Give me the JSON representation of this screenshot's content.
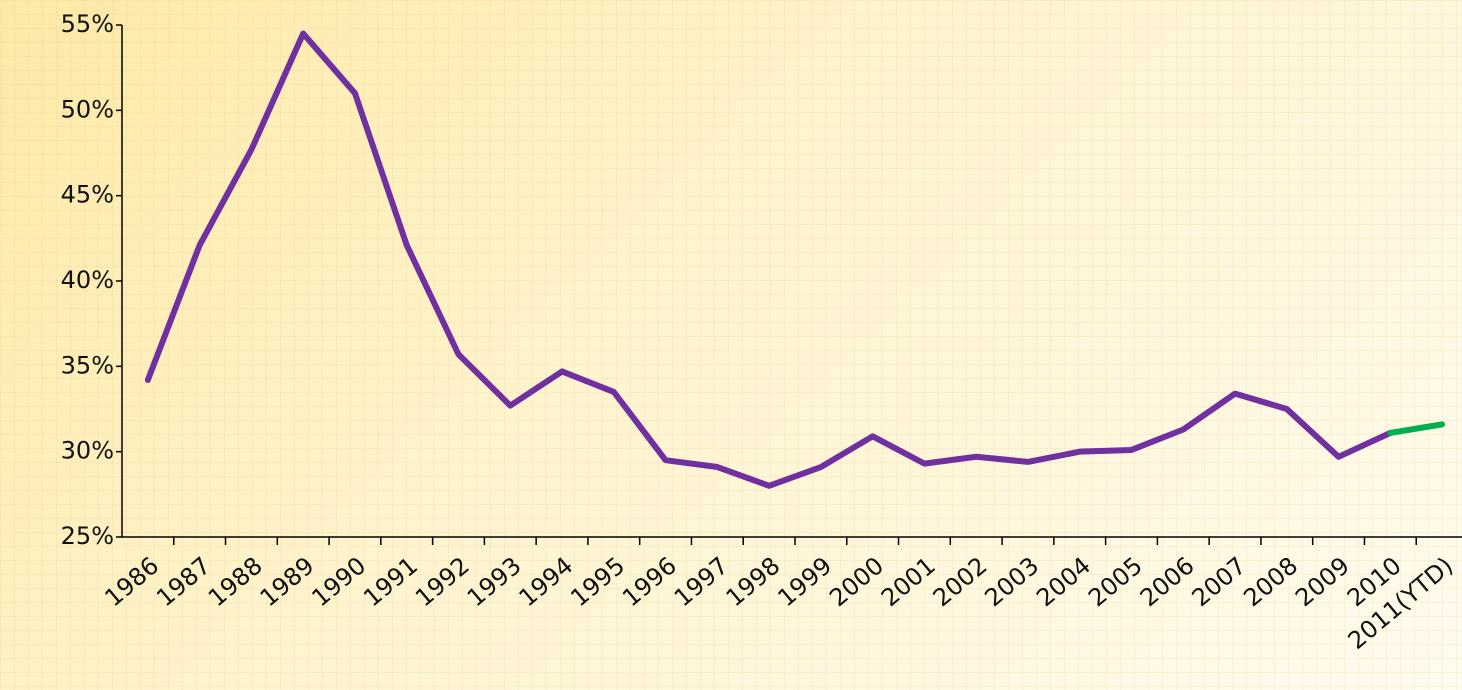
{
  "chart_data": {
    "type": "line",
    "categories": [
      "1986",
      "1987",
      "1988",
      "1989",
      "1990",
      "1991",
      "1992",
      "1993",
      "1994",
      "1995",
      "1996",
      "1997",
      "1998",
      "1999",
      "2000",
      "2001",
      "2002",
      "2003",
      "2004",
      "2005",
      "2006",
      "2007",
      "2008",
      "2009",
      "2010",
      "2011(YTD)"
    ],
    "series": [
      {
        "color": "#7030a0",
        "values": [
          34.2,
          42.1,
          47.7,
          54.5,
          51.0,
          42.1,
          35.7,
          32.7,
          34.7,
          33.5,
          29.5,
          29.1,
          28.0,
          29.1,
          30.9,
          29.3,
          29.7,
          29.4,
          30.0,
          30.1,
          31.3,
          33.4,
          32.5,
          29.7,
          31.1,
          null
        ]
      },
      {
        "color": "#00b050",
        "values": [
          null,
          null,
          null,
          null,
          null,
          null,
          null,
          null,
          null,
          null,
          null,
          null,
          null,
          null,
          null,
          null,
          null,
          null,
          null,
          null,
          null,
          null,
          null,
          null,
          31.1,
          31.6
        ]
      }
    ],
    "ylim": [
      25,
      55
    ],
    "yticks": [
      {
        "value": 25,
        "label": "25%"
      },
      {
        "value": 30,
        "label": "30%"
      },
      {
        "value": 35,
        "label": "35%"
      },
      {
        "value": 40,
        "label": "40%"
      },
      {
        "value": 45,
        "label": "45%"
      },
      {
        "value": 50,
        "label": "50%"
      },
      {
        "value": 55,
        "label": "55%"
      }
    ]
  }
}
